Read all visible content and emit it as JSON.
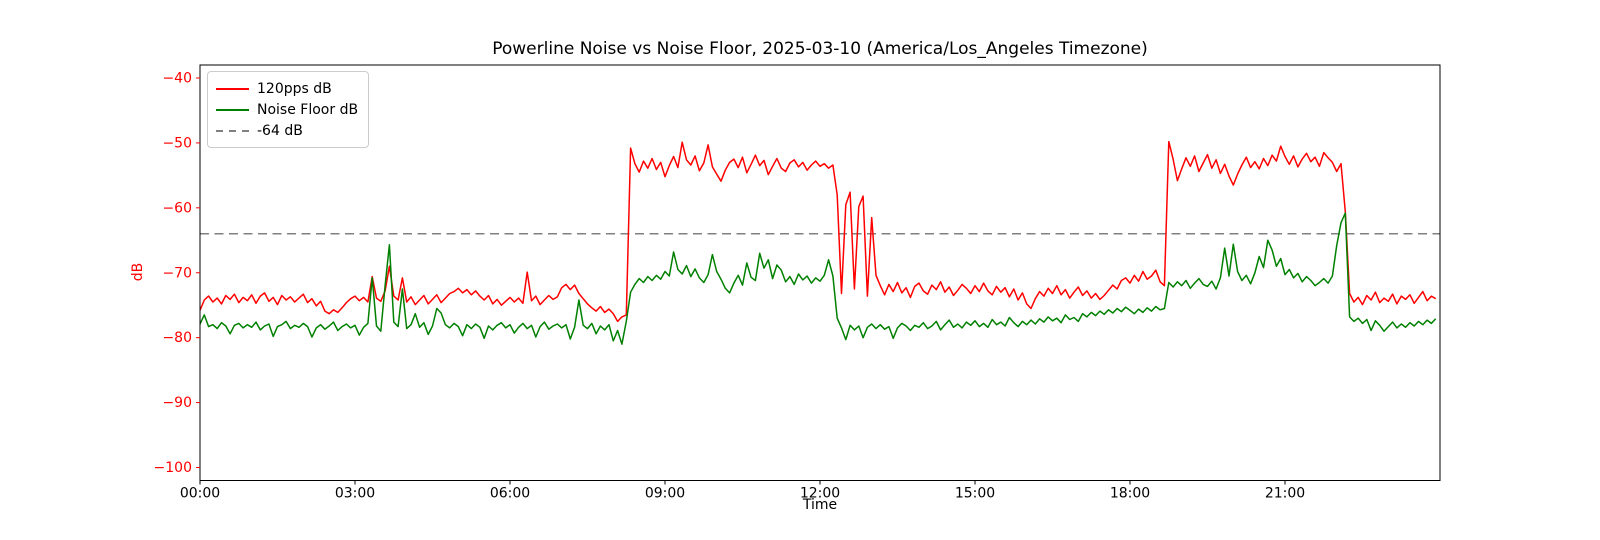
{
  "figure": {
    "title": "Powerline Noise vs Noise Floor, 2025-03-10 (America/Los_Angeles Timezone)",
    "xlabel": "Time",
    "ylabel": "dB"
  },
  "chart_data": {
    "type": "line",
    "title": "Powerline Noise vs Noise Floor, 2025-03-10 (America/Los_Angeles Timezone)",
    "xlabel": "Time",
    "ylabel": "dB",
    "x_unit": "time_of_day",
    "x_start": "00:00",
    "sample_interval_minutes": 5,
    "xlim_hours": [
      0,
      24
    ],
    "ylim": [
      -102,
      -38
    ],
    "y_ticks": [
      -40,
      -50,
      -60,
      -70,
      -80,
      -90,
      -100
    ],
    "x_ticks": [
      {
        "hour": 0,
        "label": "00:00"
      },
      {
        "hour": 3,
        "label": "03:00"
      },
      {
        "hour": 6,
        "label": "06:00"
      },
      {
        "hour": 9,
        "label": "09:00"
      },
      {
        "hour": 12,
        "label": "12:00"
      },
      {
        "hour": 15,
        "label": "15:00"
      },
      {
        "hour": 18,
        "label": "18:00"
      },
      {
        "hour": 21,
        "label": "21:00"
      }
    ],
    "grid": false,
    "legend_position": "upper left",
    "axis_colors": {
      "y_ticks": "#ff0000",
      "x_ticks": "#000000",
      "spines": "#000000",
      "ylabel": "#ff0000"
    },
    "threshold_line": {
      "label": "-64 dB",
      "value": -64,
      "color": "#808080",
      "style": "dashed"
    },
    "series": [
      {
        "name": "120pps dB",
        "color": "#ff0000",
        "style": "solid",
        "values": [
          -75.8,
          -74.2,
          -73.6,
          -74.5,
          -73.9,
          -74.8,
          -73.5,
          -74.1,
          -73.3,
          -74.6,
          -73.8,
          -74.3,
          -73.4,
          -74.7,
          -73.6,
          -73.1,
          -74.4,
          -73.8,
          -74.9,
          -73.5,
          -74.2,
          -73.7,
          -74.5,
          -73.9,
          -73.3,
          -74.6,
          -74.0,
          -75.1,
          -74.4,
          -75.9,
          -76.3,
          -75.7,
          -76.1,
          -75.4,
          -74.6,
          -74.0,
          -73.6,
          -74.3,
          -73.8,
          -74.5,
          -70.6,
          -73.9,
          -74.4,
          -72.8,
          -69.0,
          -73.6,
          -74.2,
          -70.8,
          -74.5,
          -73.7,
          -74.9,
          -74.2,
          -73.5,
          -74.8,
          -74.1,
          -73.4,
          -74.6,
          -73.9,
          -73.2,
          -72.9,
          -72.4,
          -73.1,
          -72.6,
          -73.4,
          -72.8,
          -73.6,
          -74.2,
          -73.5,
          -74.8,
          -74.1,
          -75.0,
          -74.4,
          -73.8,
          -74.5,
          -73.9,
          -74.7,
          -69.9,
          -74.3,
          -73.6,
          -74.9,
          -74.2,
          -73.5,
          -74.1,
          -73.7,
          -72.3,
          -71.8,
          -72.6,
          -71.9,
          -73.2,
          -74.0,
          -74.8,
          -75.4,
          -75.9,
          -75.2,
          -76.1,
          -75.6,
          -76.3,
          -77.5,
          -76.8,
          -76.5,
          -50.8,
          -53.2,
          -54.5,
          -52.8,
          -53.9,
          -52.4,
          -54.1,
          -53.0,
          -55.2,
          -53.5,
          -52.1,
          -53.8,
          -49.9,
          -52.6,
          -53.4,
          -52.0,
          -54.3,
          -53.1,
          -50.3,
          -53.7,
          -54.8,
          -55.9,
          -54.2,
          -53.0,
          -52.5,
          -53.8,
          -52.2,
          -54.6,
          -53.3,
          -51.9,
          -53.5,
          -52.7,
          -54.9,
          -53.6,
          -52.4,
          -53.9,
          -54.4,
          -53.1,
          -52.6,
          -53.7,
          -53.0,
          -54.2,
          -53.4,
          -52.8,
          -53.6,
          -53.2,
          -53.9,
          -53.4,
          -58.0,
          -73.2,
          -59.5,
          -57.6,
          -72.5,
          -59.8,
          -58.2,
          -73.6,
          -61.5,
          -70.4,
          -72.0,
          -73.4,
          -71.8,
          -72.9,
          -71.5,
          -73.1,
          -72.3,
          -73.8,
          -72.1,
          -71.6,
          -72.8,
          -73.3,
          -71.9,
          -72.6,
          -71.4,
          -73.0,
          -72.2,
          -73.5,
          -72.7,
          -71.8,
          -72.4,
          -73.2,
          -72.0,
          -72.9,
          -71.6,
          -72.8,
          -73.4,
          -72.1,
          -73.0,
          -72.3,
          -73.7,
          -72.5,
          -74.2,
          -73.1,
          -74.8,
          -75.5,
          -74.0,
          -72.9,
          -73.6,
          -72.4,
          -73.2,
          -72.0,
          -73.4,
          -72.6,
          -73.9,
          -73.0,
          -72.2,
          -73.5,
          -72.8,
          -73.9,
          -73.2,
          -74.1,
          -73.5,
          -72.7,
          -71.9,
          -72.5,
          -71.2,
          -70.8,
          -71.6,
          -70.4,
          -71.3,
          -69.8,
          -71.0,
          -70.5,
          -69.6,
          -71.4,
          -72.0,
          -49.8,
          -52.5,
          -55.8,
          -54.0,
          -52.3,
          -53.6,
          -52.0,
          -54.4,
          -53.1,
          -51.8,
          -53.9,
          -52.6,
          -54.7,
          -53.3,
          -55.1,
          -56.5,
          -54.8,
          -53.4,
          -52.2,
          -53.8,
          -52.9,
          -54.0,
          -52.4,
          -53.5,
          -51.9,
          -52.8,
          -50.5,
          -52.1,
          -53.3,
          -52.0,
          -53.7,
          -52.5,
          -51.6,
          -52.9,
          -52.2,
          -53.6,
          -51.5,
          -52.3,
          -53.0,
          -54.4,
          -53.2,
          -60.6,
          -73.2,
          -74.5,
          -73.8,
          -74.9,
          -73.5,
          -74.2,
          -73.0,
          -74.6,
          -73.9,
          -74.4,
          -73.3,
          -74.8,
          -73.6,
          -74.1,
          -73.4,
          -74.7,
          -73.8,
          -72.9,
          -74.3,
          -73.6,
          -74.0
        ]
      },
      {
        "name": "Noise Floor dB",
        "color": "#008000",
        "style": "solid",
        "values": [
          -77.9,
          -76.5,
          -78.3,
          -78.0,
          -78.6,
          -77.7,
          -78.2,
          -79.4,
          -78.1,
          -77.8,
          -78.5,
          -78.0,
          -78.4,
          -77.6,
          -78.8,
          -78.2,
          -77.9,
          -79.8,
          -78.3,
          -78.0,
          -77.5,
          -78.6,
          -78.1,
          -78.4,
          -77.8,
          -78.3,
          -79.9,
          -78.5,
          -78.0,
          -78.7,
          -78.2,
          -77.6,
          -78.9,
          -78.3,
          -77.9,
          -78.5,
          -78.1,
          -79.6,
          -78.4,
          -77.8,
          -70.8,
          -78.2,
          -79.0,
          -72.0,
          -65.7,
          -77.6,
          -78.3,
          -72.5,
          -78.6,
          -78.0,
          -76.3,
          -78.4,
          -77.7,
          -79.5,
          -78.2,
          -75.5,
          -76.2,
          -78.0,
          -78.5,
          -77.8,
          -78.3,
          -79.7,
          -78.0,
          -78.6,
          -77.9,
          -78.4,
          -80.1,
          -78.2,
          -78.8,
          -78.1,
          -77.7,
          -78.5,
          -78.0,
          -79.3,
          -78.4,
          -77.8,
          -78.6,
          -78.1,
          -79.9,
          -78.3,
          -77.6,
          -78.7,
          -78.2,
          -77.9,
          -78.5,
          -78.0,
          -80.2,
          -78.4,
          -74.2,
          -78.1,
          -78.6,
          -77.8,
          -79.4,
          -78.2,
          -78.8,
          -78.0,
          -80.5,
          -78.9,
          -81.0,
          -77.5,
          -73.0,
          -71.8,
          -70.9,
          -71.5,
          -70.6,
          -71.2,
          -70.4,
          -71.0,
          -69.8,
          -70.5,
          -66.8,
          -69.5,
          -70.2,
          -68.9,
          -70.6,
          -69.4,
          -70.8,
          -71.5,
          -70.3,
          -67.2,
          -69.8,
          -71.0,
          -72.4,
          -73.1,
          -71.6,
          -70.4,
          -71.9,
          -68.5,
          -70.7,
          -71.2,
          -67.0,
          -69.3,
          -68.0,
          -70.9,
          -68.8,
          -69.6,
          -71.4,
          -70.6,
          -71.8,
          -70.2,
          -71.1,
          -70.5,
          -71.6,
          -70.8,
          -71.3,
          -70.4,
          -68.0,
          -70.5,
          -77.0,
          -78.5,
          -80.3,
          -78.1,
          -78.8,
          -78.2,
          -80.0,
          -78.4,
          -77.9,
          -78.6,
          -78.0,
          -78.7,
          -78.3,
          -80.1,
          -78.5,
          -77.8,
          -78.2,
          -78.9,
          -78.1,
          -78.4,
          -77.7,
          -78.6,
          -78.2,
          -77.5,
          -78.8,
          -78.0,
          -77.3,
          -78.4,
          -77.9,
          -78.5,
          -77.6,
          -78.1,
          -77.4,
          -78.3,
          -77.8,
          -78.4,
          -77.2,
          -78.0,
          -77.6,
          -78.2,
          -76.9,
          -77.7,
          -78.3,
          -77.5,
          -78.0,
          -77.3,
          -77.9,
          -77.1,
          -77.6,
          -76.8,
          -77.4,
          -77.0,
          -77.7,
          -76.5,
          -77.2,
          -76.9,
          -77.5,
          -76.3,
          -76.8,
          -76.1,
          -76.6,
          -75.9,
          -76.4,
          -75.7,
          -76.2,
          -75.5,
          -76.0,
          -75.3,
          -75.8,
          -76.3,
          -75.6,
          -76.1,
          -75.4,
          -75.9,
          -75.2,
          -75.7,
          -75.5,
          -71.5,
          -72.2,
          -71.4,
          -72.0,
          -71.2,
          -72.4,
          -71.6,
          -70.9,
          -71.8,
          -72.1,
          -71.3,
          -72.5,
          -70.8,
          -66.2,
          -70.5,
          -65.6,
          -69.8,
          -71.2,
          -70.4,
          -71.7,
          -70.0,
          -67.5,
          -69.2,
          -65.0,
          -66.5,
          -69.0,
          -67.8,
          -70.3,
          -69.5,
          -70.8,
          -70.1,
          -71.4,
          -70.6,
          -71.2,
          -72.0,
          -71.5,
          -70.9,
          -71.6,
          -70.5,
          -65.8,
          -62.3,
          -60.8,
          -76.8,
          -77.5,
          -77.0,
          -77.8,
          -77.2,
          -78.9,
          -77.4,
          -78.1,
          -79.0,
          -78.3,
          -77.6,
          -78.5,
          -77.9,
          -78.4,
          -77.7,
          -78.2,
          -77.5,
          -78.0,
          -77.3,
          -77.8,
          -77.1
        ]
      }
    ]
  },
  "legend": {
    "entries": [
      {
        "label": "120pps dB"
      },
      {
        "label": "Noise Floor dB"
      },
      {
        "label": "-64 dB"
      }
    ]
  }
}
